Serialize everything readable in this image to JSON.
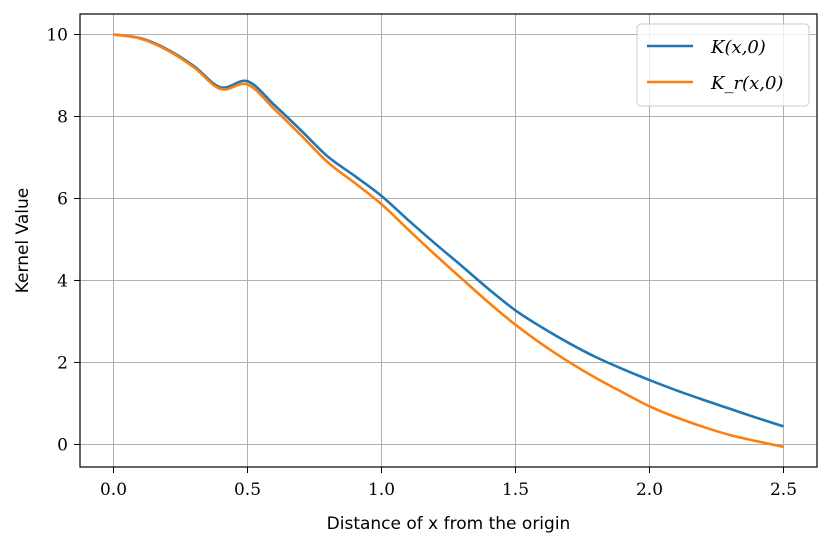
{
  "chart_data": {
    "type": "line",
    "xlabel": "Distance of x from the origin",
    "ylabel": "Kernel Value",
    "xlim": [
      -0.125,
      2.625
    ],
    "ylim": [
      -0.55,
      10.5
    ],
    "xticks": [
      0.0,
      0.5,
      1.0,
      1.5,
      2.0,
      2.5
    ],
    "xtick_labels": [
      "0.0",
      "0.5",
      "1.0",
      "1.5",
      "2.0",
      "2.5"
    ],
    "yticks": [
      0,
      2,
      4,
      6,
      8,
      10
    ],
    "ytick_labels": [
      "0",
      "2",
      "4",
      "6",
      "8",
      "10"
    ],
    "grid": true,
    "legend_position": "top-right",
    "colors": {
      "K": "#1f77b4",
      "Kr": "#ff7f0e"
    },
    "series": [
      {
        "name": "K(x,0)",
        "x": [
          0.0,
          0.1,
          0.2,
          0.3,
          0.4,
          0.5,
          0.6,
          0.7,
          0.8,
          0.9,
          1.0,
          1.1,
          1.2,
          1.3,
          1.4,
          1.5,
          1.6,
          1.7,
          1.8,
          1.9,
          2.0,
          2.1,
          2.2,
          2.3,
          2.4,
          2.5
        ],
        "values": [
          10.0,
          9.91,
          9.64,
          9.23,
          8.71,
          8.86,
          8.28,
          7.66,
          7.02,
          6.55,
          6.06,
          5.47,
          4.9,
          4.35,
          3.79,
          3.27,
          2.85,
          2.47,
          2.13,
          1.84,
          1.57,
          1.32,
          1.09,
          0.87,
          0.65,
          0.44
        ]
      },
      {
        "name": "K_r(x,0)",
        "x": [
          0.0,
          0.1,
          0.2,
          0.3,
          0.4,
          0.5,
          0.6,
          0.7,
          0.8,
          0.9,
          1.0,
          1.1,
          1.2,
          1.3,
          1.4,
          1.5,
          1.6,
          1.7,
          1.8,
          1.9,
          2.0,
          2.1,
          2.2,
          2.3,
          2.4,
          2.5
        ],
        "values": [
          10.0,
          9.9,
          9.62,
          9.2,
          8.67,
          8.78,
          8.18,
          7.54,
          6.88,
          6.38,
          5.86,
          5.24,
          4.63,
          4.04,
          3.46,
          2.92,
          2.44,
          2.01,
          1.62,
          1.27,
          0.93,
          0.66,
          0.43,
          0.23,
          0.08,
          -0.06
        ]
      }
    ],
    "legend": [
      {
        "label": "K(x,0)",
        "key": "K"
      },
      {
        "label": "K_r(x,0)",
        "key": "Kr"
      }
    ]
  }
}
